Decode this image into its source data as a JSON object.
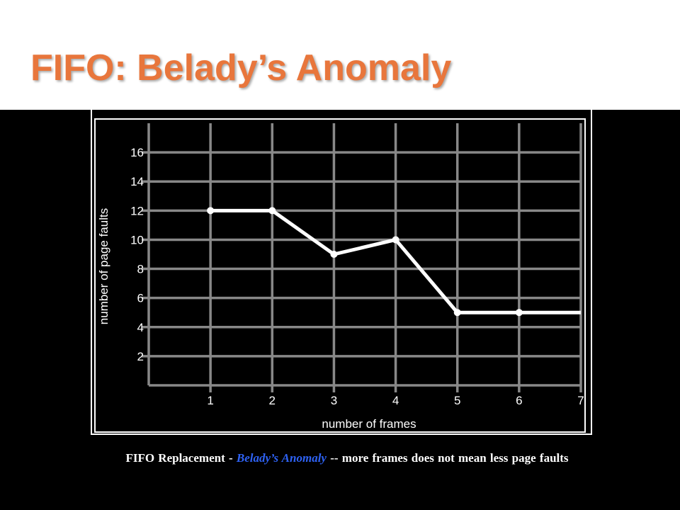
{
  "slide": {
    "title": "FIFO: Belady’s Anomaly"
  },
  "caption": {
    "prefix": "FIFO Replacement - ",
    "highlight": "Belady’s Anomaly",
    "suffix": " -- more frames does not mean less page faults",
    "highlight_color": "#2E62F4"
  },
  "colors": {
    "title": "#E8763C",
    "background": "#000000",
    "grid": "#888888",
    "line": "#ffffff"
  },
  "chart_data": {
    "type": "line",
    "title": "",
    "xlabel": "number of frames",
    "ylabel": "number of page faults",
    "x_ticks": [
      1,
      2,
      3,
      4,
      5,
      6,
      7
    ],
    "y_ticks": [
      2,
      4,
      6,
      8,
      10,
      12,
      14,
      16
    ],
    "xlim": [
      0,
      7
    ],
    "ylim": [
      0,
      18
    ],
    "grid": true,
    "series": [
      {
        "points": [
          {
            "x": 1,
            "y": 12
          },
          {
            "x": 2,
            "y": 12
          },
          {
            "x": 3,
            "y": 9
          },
          {
            "x": 4,
            "y": 10
          },
          {
            "x": 5,
            "y": 5
          },
          {
            "x": 6,
            "y": 5
          },
          {
            "x": 7,
            "y": 5
          }
        ],
        "markers": [
          1,
          2,
          3,
          4,
          5,
          6
        ]
      }
    ]
  }
}
